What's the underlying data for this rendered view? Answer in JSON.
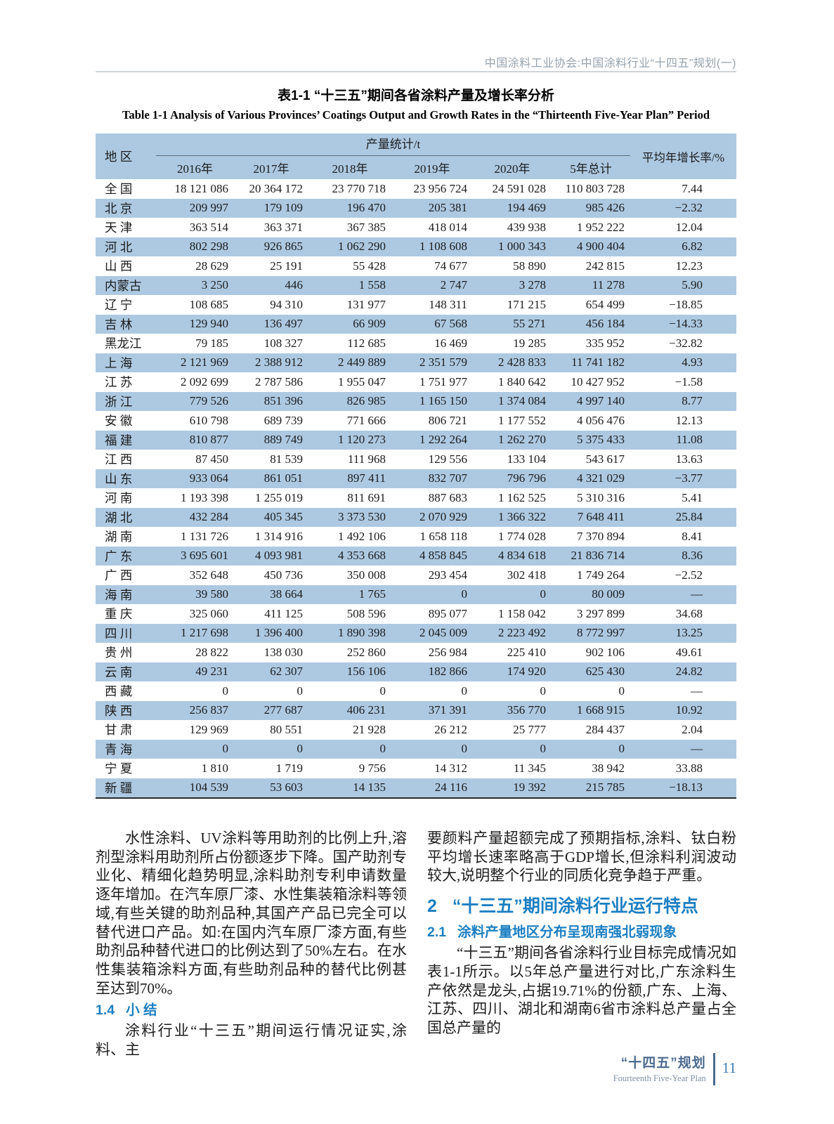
{
  "colors": {
    "row_blue": "#adc9e2",
    "heading_blue": "#1c7fc2",
    "footer_slate": "#4c6a8e",
    "page_num_blue": "#3e7cb6",
    "header_gray": "#97a2ab",
    "rule_gray": "#cfd4d8"
  },
  "page_header": {
    "text": "中国涂料工业协会:中国涂料行业“十四五”规划(一)"
  },
  "table": {
    "title_zh": "表1-1  “十三五”期间各省涂料产量及增长率分析",
    "title_en": "Table 1-1  Analysis of Various Provinces’ Coatings Output and Growth Rates in the “Thirteenth Five-Year Plan” Period",
    "col_region": "地  区",
    "col_group": "产量统计/t",
    "col_growth": "平均年增长率/%",
    "years": [
      "2016年",
      "2017年",
      "2018年",
      "2019年",
      "2020年",
      "5年总计"
    ],
    "rows": [
      {
        "region": "全 国",
        "values": [
          "18 121 086",
          "20 364 172",
          "23 770 718",
          "23 956 724",
          "24 591 028",
          "110 803 728"
        ],
        "growth": "7.44"
      },
      {
        "region": "北 京",
        "values": [
          "209 997",
          "179 109",
          "196 470",
          "205 381",
          "194 469",
          "985 426"
        ],
        "growth": "−2.32"
      },
      {
        "region": "天 津",
        "values": [
          "363 514",
          "363 371",
          "367 385",
          "418 014",
          "439 938",
          "1 952 222"
        ],
        "growth": "12.04"
      },
      {
        "region": "河 北",
        "values": [
          "802 298",
          "926 865",
          "1 062 290",
          "1 108 608",
          "1 000 343",
          "4 900 404"
        ],
        "growth": "6.82"
      },
      {
        "region": "山 西",
        "values": [
          "28 629",
          "25 191",
          "55 428",
          "74 677",
          "58 890",
          "242 815"
        ],
        "growth": "12.23"
      },
      {
        "region": "内蒙古",
        "values": [
          "3 250",
          "446",
          "1 558",
          "2 747",
          "3 278",
          "11 278"
        ],
        "growth": "5.90"
      },
      {
        "region": "辽 宁",
        "values": [
          "108 685",
          "94 310",
          "131 977",
          "148 311",
          "171 215",
          "654 499"
        ],
        "growth": "−18.85"
      },
      {
        "region": "吉 林",
        "values": [
          "129 940",
          "136 497",
          "66 909",
          "67 568",
          "55 271",
          "456 184"
        ],
        "growth": "−14.33"
      },
      {
        "region": "黑龙江",
        "values": [
          "79 185",
          "108 327",
          "112 685",
          "16 469",
          "19 285",
          "335 952"
        ],
        "growth": "−32.82"
      },
      {
        "region": "上 海",
        "values": [
          "2 121 969",
          "2 388 912",
          "2 449 889",
          "2 351 579",
          "2 428 833",
          "11 741 182"
        ],
        "growth": "4.93"
      },
      {
        "region": "江 苏",
        "values": [
          "2 092 699",
          "2 787 586",
          "1 955 047",
          "1 751 977",
          "1 840 642",
          "10 427 952"
        ],
        "growth": "−1.58"
      },
      {
        "region": "浙 江",
        "values": [
          "779 526",
          "851 396",
          "826 985",
          "1 165 150",
          "1 374 084",
          "4 997 140"
        ],
        "growth": "8.77"
      },
      {
        "region": "安 徽",
        "values": [
          "610 798",
          "689 739",
          "771 666",
          "806 721",
          "1 177 552",
          "4 056 476"
        ],
        "growth": "12.13"
      },
      {
        "region": "福 建",
        "values": [
          "810 877",
          "889 749",
          "1 120 273",
          "1 292 264",
          "1 262 270",
          "5 375 433"
        ],
        "growth": "11.08"
      },
      {
        "region": "江 西",
        "values": [
          "87 450",
          "81 539",
          "111 968",
          "129 556",
          "133 104",
          "543 617"
        ],
        "growth": "13.63"
      },
      {
        "region": "山 东",
        "values": [
          "933 064",
          "861 051",
          "897 411",
          "832 707",
          "796 796",
          "4 321 029"
        ],
        "growth": "−3.77"
      },
      {
        "region": "河 南",
        "values": [
          "1 193 398",
          "1 255 019",
          "811 691",
          "887 683",
          "1 162 525",
          "5 310 316"
        ],
        "growth": "5.41"
      },
      {
        "region": "湖 北",
        "values": [
          "432 284",
          "405 345",
          "3 373 530",
          "2 070 929",
          "1 366 322",
          "7 648 411"
        ],
        "growth": "25.84"
      },
      {
        "region": "湖 南",
        "values": [
          "1 131 726",
          "1 314 916",
          "1 492 106",
          "1 658 118",
          "1 774 028",
          "7 370 894"
        ],
        "growth": "8.41"
      },
      {
        "region": "广 东",
        "values": [
          "3 695 601",
          "4 093 981",
          "4 353 668",
          "4 858 845",
          "4 834 618",
          "21 836 714"
        ],
        "growth": "8.36"
      },
      {
        "region": "广 西",
        "values": [
          "352 648",
          "450 736",
          "350 008",
          "293 454",
          "302 418",
          "1 749 264"
        ],
        "growth": "−2.52"
      },
      {
        "region": "海 南",
        "values": [
          "39 580",
          "38 664",
          "1 765",
          "0",
          "0",
          "80 009"
        ],
        "growth": "—"
      },
      {
        "region": "重 庆",
        "values": [
          "325 060",
          "411 125",
          "508 596",
          "895 077",
          "1 158 042",
          "3 297 899"
        ],
        "growth": "34.68"
      },
      {
        "region": "四 川",
        "values": [
          "1 217 698",
          "1 396 400",
          "1 890 398",
          "2 045 009",
          "2 223 492",
          "8 772 997"
        ],
        "growth": "13.25"
      },
      {
        "region": "贵 州",
        "values": [
          "28 822",
          "138 030",
          "252 860",
          "256 984",
          "225 410",
          "902 106"
        ],
        "growth": "49.61"
      },
      {
        "region": "云 南",
        "values": [
          "49 231",
          "62 307",
          "156 106",
          "182 866",
          "174 920",
          "625 430"
        ],
        "growth": "24.82"
      },
      {
        "region": "西 藏",
        "values": [
          "0",
          "0",
          "0",
          "0",
          "0",
          "0"
        ],
        "growth": "—"
      },
      {
        "region": "陕 西",
        "values": [
          "256 837",
          "277 687",
          "406 231",
          "371 391",
          "356 770",
          "1 668 915"
        ],
        "growth": "10.92"
      },
      {
        "region": "甘 肃",
        "values": [
          "129 969",
          "80 551",
          "21 928",
          "26 212",
          "25 777",
          "284 437"
        ],
        "growth": "2.04"
      },
      {
        "region": "青 海",
        "values": [
          "0",
          "0",
          "0",
          "0",
          "0",
          "0"
        ],
        "growth": "—"
      },
      {
        "region": "宁 夏",
        "values": [
          "1 810",
          "1 719",
          "9 756",
          "14 312",
          "11 345",
          "38 942"
        ],
        "growth": "33.88"
      },
      {
        "region": "新 疆",
        "values": [
          "104 539",
          "53 603",
          "14 135",
          "24 116",
          "19 392",
          "215 785"
        ],
        "growth": "−18.13"
      }
    ]
  },
  "left_column": {
    "para1": "水性涂料、UV涂料等用助剂的比例上升,溶剂型涂料用助剂所占份额逐步下降。国产助剂专业化、精细化趋势明显,涂料助剂专利申请数量逐年增加。在汽车原厂漆、水性集装箱涂料等领域,有些关键的助剂品种,其国产产品已完全可以替代进口产品。如:在国内汽车原厂漆方面,有些助剂品种替代进口的比例达到了50%左右。在水性集装箱涂料方面,有些助剂品种的替代比例甚至达到70%。",
    "heading": {
      "num": "1.4",
      "title": "小  结"
    },
    "para2": "涂料行业“十三五”期间运行情况证实,涂料、主"
  },
  "right_column": {
    "para1": "要颜料产量超额完成了预期指标,涂料、钛白粉平均增长速率略高于GDP增长,但涂料利润波动较大,说明整个行业的同质化竞争趋于严重。",
    "heading_big": {
      "num": "2",
      "title": "“十三五”期间涂料行业运行特点"
    },
    "heading_small": {
      "num": "2.1",
      "title": "涂料产量地区分布呈现南强北弱现象"
    },
    "para2": "“十三五”期间各省涂料行业目标完成情况如表1-1所示。以5年总产量进行对比,广东涂料生产依然是龙头,占据19.71%的份额,广东、上海、江苏、四川、湖北和湖南6省市涂料总产量占全国总产量的"
  },
  "footer": {
    "zh": "“十四五”规划",
    "en": "Fourteenth Five-Year Plan",
    "page": "11"
  }
}
